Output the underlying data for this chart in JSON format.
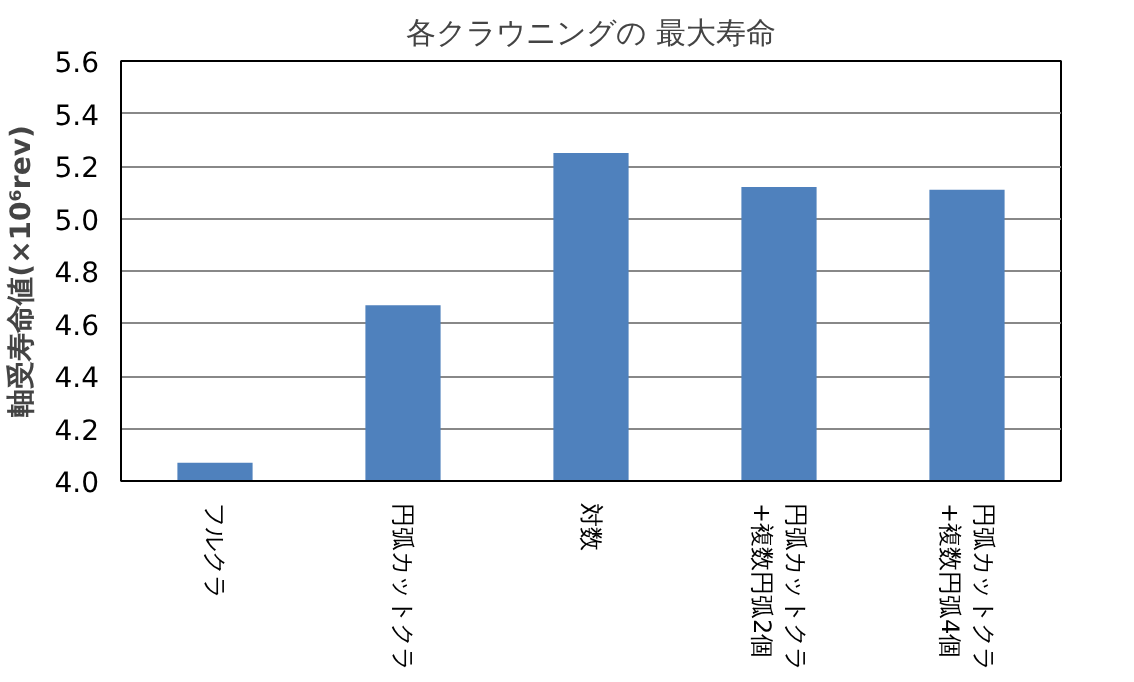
{
  "chart_data": {
    "type": "bar",
    "title": "各クラウニングの 最大寿命",
    "ylabel": "軸受寿命値(×10⁶rev)",
    "categories": [
      "フルクラ",
      "円弧カットクラ",
      "対数",
      "円弧カットクラ\n+複数円弧2個",
      "円弧カットクラ\n+複数円弧4個"
    ],
    "values": [
      4.07,
      4.67,
      5.25,
      5.12,
      5.11
    ],
    "color": "#4f81bd",
    "ylim": [
      4.0,
      5.6
    ],
    "yticks": [
      {
        "value": 4.0,
        "label": "4.0"
      },
      {
        "value": 4.2,
        "label": "4.2"
      },
      {
        "value": 4.4,
        "label": "4.4"
      },
      {
        "value": 4.6,
        "label": "4.6"
      },
      {
        "value": 4.8,
        "label": "4.8"
      },
      {
        "value": 5.0,
        "label": "5.0"
      },
      {
        "value": 5.2,
        "label": "5.2"
      },
      {
        "value": 5.4,
        "label": "5.4"
      },
      {
        "value": 5.6,
        "label": "5.6"
      }
    ],
    "grid": "y"
  }
}
